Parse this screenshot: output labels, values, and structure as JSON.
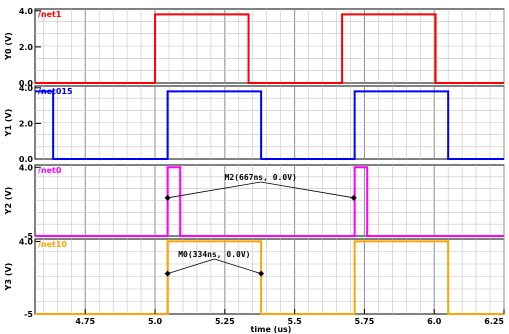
{
  "chart_data": {
    "type": "line",
    "xlabel": "time (us)",
    "xlim": [
      4.57,
      6.25
    ],
    "x_ticks": [
      4.75,
      5.0,
      5.25,
      5.5,
      5.75,
      6.0,
      6.25
    ],
    "x_tick_labels": [
      "4.75",
      "5.0",
      "5.25",
      "5.5",
      "5.75",
      "6.0",
      "6.25"
    ],
    "grid": true,
    "panels": [
      {
        "name": "/net1",
        "ylabel": "Y0 (V)",
        "ylim": [
          0,
          4.1
        ],
        "y_ticks": [
          0,
          2.0,
          4.0
        ],
        "y_tick_labels": [
          "0.0",
          "2.0",
          "4.0"
        ],
        "color": "#ff0000",
        "x": [
          4.57,
          5.0,
          5.0,
          5.335,
          5.335,
          5.67,
          5.67,
          6.005,
          6.005,
          6.25
        ],
        "y": [
          0,
          0,
          3.8,
          3.8,
          0,
          0,
          3.8,
          3.8,
          0,
          0
        ]
      },
      {
        "name": "/net015",
        "ylabel": "Y1 (V)",
        "ylim": [
          0,
          4.1
        ],
        "y_ticks": [
          0,
          2.0,
          4.0
        ],
        "y_tick_labels": [
          "0.0",
          "2.0",
          "4.0"
        ],
        "color": "#0000ff",
        "x": [
          4.57,
          4.635,
          4.635,
          5.045,
          5.045,
          5.38,
          5.38,
          5.715,
          5.715,
          6.05,
          6.05,
          6.25
        ],
        "y": [
          3.8,
          3.8,
          0,
          0,
          3.8,
          3.8,
          0,
          0,
          3.8,
          3.8,
          0,
          0
        ]
      },
      {
        "name": "/net0",
        "ylabel": "Y2 (V)",
        "ylim": [
          -5,
          4.3
        ],
        "y_ticks": [
          -5,
          4.0
        ],
        "y_tick_labels": [
          "-5",
          "4.0"
        ],
        "color": "#ff00ff",
        "x": [
          4.57,
          5.045,
          5.045,
          5.09,
          5.09,
          5.715,
          5.715,
          5.76,
          5.76,
          6.25
        ],
        "y": [
          -5,
          -5,
          4.0,
          4.0,
          -5,
          -5,
          4.0,
          4.0,
          -5,
          -5
        ],
        "annotation": {
          "text": "M2(667ns, 0.0V)",
          "points": [
            [
              5.045,
              0.0
            ],
            [
              5.712,
              0.0
            ]
          ]
        }
      },
      {
        "name": "/net10",
        "ylabel": "Y3 (V)",
        "ylim": [
          -5,
          4.3
        ],
        "y_ticks": [
          -5,
          4.0
        ],
        "y_tick_labels": [
          "-5",
          "4.0"
        ],
        "color": "#ffa500",
        "x": [
          4.57,
          5.045,
          5.045,
          5.38,
          5.38,
          5.715,
          5.715,
          6.05,
          6.05,
          6.25
        ],
        "y": [
          -5,
          -5,
          4.0,
          4.0,
          -5,
          -5,
          4.0,
          4.0,
          -5,
          -5
        ],
        "annotation": {
          "text": "M0(334ns, 0.0V)",
          "points": [
            [
              5.045,
              0.0
            ],
            [
              5.38,
              0.0
            ]
          ]
        }
      }
    ]
  }
}
